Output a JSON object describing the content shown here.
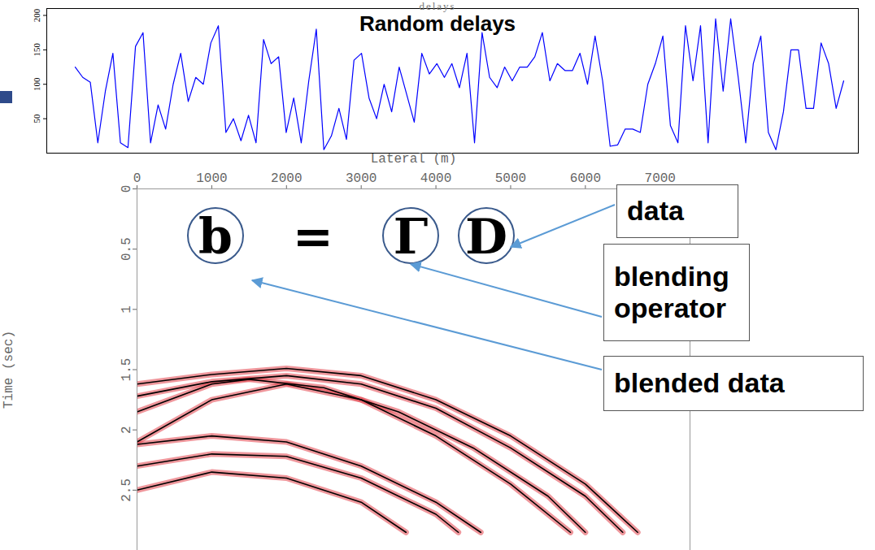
{
  "chart_data": [
    {
      "type": "line",
      "title": "Random delays",
      "subtitle": "delays",
      "color": "#0000ff",
      "tick_labels": "y",
      "grid": false,
      "ylim": [
        0,
        210
      ],
      "yticks": [
        50,
        100,
        150,
        200
      ],
      "values": [
        125,
        110,
        103,
        15,
        90,
        145,
        15,
        8,
        155,
        175,
        15,
        70,
        35,
        100,
        145,
        75,
        110,
        100,
        160,
        185,
        30,
        50,
        18,
        55,
        15,
        165,
        130,
        140,
        30,
        80,
        15,
        105,
        180,
        5,
        25,
        65,
        20,
        135,
        145,
        80,
        50,
        100,
        60,
        125,
        85,
        45,
        145,
        115,
        130,
        110,
        130,
        95,
        145,
        15,
        175,
        110,
        95,
        125,
        105,
        125,
        125,
        140,
        175,
        105,
        130,
        120,
        120,
        145,
        100,
        170,
        105,
        10,
        12,
        35,
        35,
        30,
        100,
        130,
        170,
        40,
        15,
        185,
        105,
        185,
        15,
        195,
        90,
        195,
        110,
        15,
        130,
        170,
        30,
        5,
        60,
        150,
        150,
        65,
        65,
        160,
        130,
        65,
        105
      ]
    },
    {
      "type": "line",
      "x_label": "Lateral (m)",
      "y_label": "Time (sec)",
      "color": "#000000",
      "grid": false,
      "xlim": [
        0,
        7400
      ],
      "xticks": [
        0,
        1000,
        2000,
        3000,
        4000,
        5000,
        6000,
        7000
      ],
      "ylim": [
        0,
        3.0
      ],
      "yticks": [
        0,
        0.5,
        1,
        1.5,
        2,
        2.5
      ],
      "series": [
        {
          "x": [
            0,
            1000,
            2000,
            3000,
            4000,
            5000,
            6000,
            6700
          ],
          "values": [
            1.62,
            1.54,
            1.49,
            1.55,
            1.75,
            2.05,
            2.45,
            2.85
          ]
        },
        {
          "x": [
            0,
            1000,
            2000,
            3000,
            4000,
            5000,
            6000,
            6500
          ],
          "values": [
            1.72,
            1.6,
            1.55,
            1.62,
            1.82,
            2.15,
            2.55,
            2.85
          ]
        },
        {
          "x": [
            0,
            1000,
            1500,
            2500,
            3500,
            4500,
            5500,
            6000
          ],
          "values": [
            1.85,
            1.62,
            1.58,
            1.65,
            1.85,
            2.15,
            2.55,
            2.85
          ]
        },
        {
          "x": [
            0,
            1000,
            2000,
            3000,
            4000,
            5000,
            5800
          ],
          "values": [
            2.1,
            1.75,
            1.62,
            1.75,
            2.05,
            2.45,
            2.85
          ]
        },
        {
          "x": [
            0,
            1000,
            2000,
            3000,
            4000,
            4600
          ],
          "values": [
            2.12,
            2.05,
            2.1,
            2.3,
            2.6,
            2.85
          ]
        },
        {
          "x": [
            0,
            1000,
            2000,
            3000,
            4000,
            4300
          ],
          "values": [
            2.3,
            2.2,
            2.22,
            2.4,
            2.7,
            2.85
          ]
        },
        {
          "x": [
            0,
            1000,
            2000,
            3000,
            3600
          ],
          "values": [
            2.5,
            2.35,
            2.4,
            2.6,
            2.85
          ]
        }
      ]
    }
  ],
  "equation": [
    "b",
    "=",
    "Γ",
    "D"
  ],
  "annotations": [
    {
      "text": "data",
      "points_to": "D"
    },
    {
      "text": "blending operator",
      "points_to": "Γ"
    },
    {
      "text": "blended data",
      "points_to": "b"
    }
  ]
}
